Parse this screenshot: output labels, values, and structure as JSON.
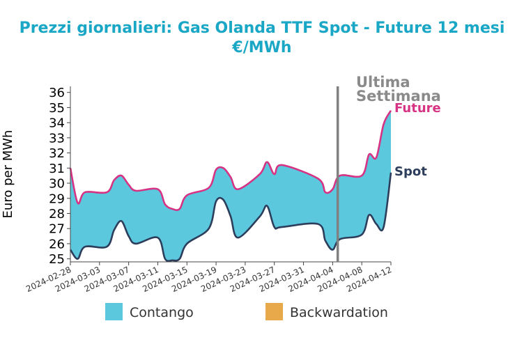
{
  "chart_data": {
    "type": "area",
    "title_line1": "Prezzi giornalieri: Gas Olanda TTF Spot - Future 12 mesi",
    "title_line2": "€/MWh",
    "ylabel": "Euro per MWh",
    "ylim": [
      24.8,
      36.4
    ],
    "yticks": [
      25,
      26,
      27,
      28,
      29,
      30,
      31,
      32,
      33,
      34,
      35,
      36
    ],
    "x_start": "2024-02-28",
    "x_end": "2024-04-12",
    "xticks": [
      "2024-02-28",
      "2024-03-03",
      "2024-03-07",
      "2024-03-11",
      "2024-03-15",
      "2024-03-19",
      "2024-03-23",
      "2024-03-27",
      "2024-03-31",
      "2024-04-04",
      "2024-04-08",
      "2024-04-12"
    ],
    "dates": [
      "2024-02-28",
      "2024-02-29",
      "2024-03-01",
      "2024-03-04",
      "2024-03-05",
      "2024-03-06",
      "2024-03-07",
      "2024-03-08",
      "2024-03-11",
      "2024-03-12",
      "2024-03-13",
      "2024-03-14",
      "2024-03-15",
      "2024-03-18",
      "2024-03-19",
      "2024-03-20",
      "2024-03-21",
      "2024-03-22",
      "2024-03-25",
      "2024-03-26",
      "2024-03-27",
      "2024-03-28",
      "2024-04-02",
      "2024-04-03",
      "2024-04-04",
      "2024-04-05",
      "2024-04-08",
      "2024-04-09",
      "2024-04-10",
      "2024-04-11",
      "2024-04-12"
    ],
    "series": [
      {
        "name": "Future",
        "color": "#d63384",
        "values": [
          31.0,
          28.7,
          29.4,
          29.4,
          30.2,
          30.5,
          29.9,
          29.5,
          29.6,
          28.6,
          28.3,
          28.3,
          29.2,
          29.7,
          30.9,
          31.0,
          30.4,
          29.6,
          30.6,
          31.4,
          30.6,
          31.2,
          30.3,
          29.4,
          29.6,
          30.5,
          30.5,
          31.9,
          31.7,
          33.9,
          34.8
        ]
      },
      {
        "name": "Spot",
        "color": "#2c3e5c",
        "values": [
          25.6,
          25.0,
          25.8,
          25.8,
          26.9,
          27.5,
          26.5,
          26.0,
          26.4,
          25.0,
          24.9,
          25.0,
          26.0,
          27.0,
          28.8,
          28.9,
          27.8,
          26.4,
          27.8,
          28.5,
          27.1,
          27.1,
          27.3,
          26.2,
          25.6,
          26.3,
          26.6,
          27.9,
          27.3,
          27.1,
          30.7
        ]
      }
    ],
    "vline": {
      "date": "2024-04-05",
      "label_line1": "Ultima",
      "label_line2": "Settimana",
      "color": "#808080"
    },
    "legend": [
      {
        "label": "Contango",
        "color": "#5bc8de"
      },
      {
        "label": "Backwardation",
        "color": "#e8a94a"
      }
    ],
    "fill_color": "#5bc8de"
  }
}
